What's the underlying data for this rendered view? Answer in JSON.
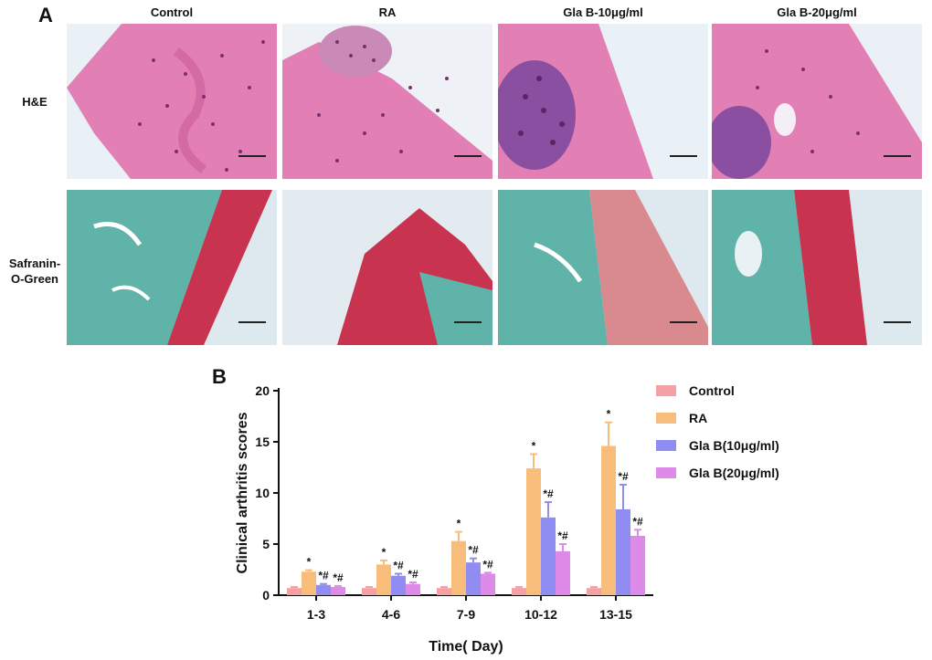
{
  "panel_a": {
    "letter": "A",
    "columns": [
      "Control",
      "RA",
      "Gla B-10μg/ml",
      "Gla B-20μg/ml"
    ],
    "rows": [
      {
        "label_lines": [
          "H&E"
        ]
      },
      {
        "label_lines": [
          "Safranin-",
          "O-Green"
        ]
      }
    ],
    "colors": {
      "he_background": "#e9f0f6",
      "he_tissue": "#e27fb4",
      "he_nuclei": "#7b2f73",
      "safranin_green": "#5fb3a8",
      "safranin_red": "#c8334f",
      "safranin_background": "#dde9ef"
    }
  },
  "panel_b": {
    "letter": "B",
    "legend": [
      "Control",
      "RA",
      "Gla B(10μg/ml)",
      "Gla B(20μg/ml)"
    ],
    "colors": [
      "#f4a0a4",
      "#f8bd7a",
      "#8f8cf2",
      "#de8ae8"
    ],
    "chart_data": {
      "type": "bar",
      "xlabel": "Time( Day)",
      "ylabel": "Clinical arthritis scores",
      "ylim": [
        0,
        20
      ],
      "yticks": [
        0,
        5,
        10,
        15,
        20
      ],
      "categories": [
        "1-3",
        "4-6",
        "7-9",
        "10-12",
        "13-15"
      ],
      "series": [
        {
          "name": "Control",
          "values": [
            0.7,
            0.7,
            0.7,
            0.7,
            0.7
          ],
          "errors": [
            0.1,
            0.1,
            0.1,
            0.1,
            0.1
          ],
          "sig": [
            "",
            "",
            "",
            "",
            ""
          ]
        },
        {
          "name": "RA",
          "values": [
            2.3,
            3.0,
            5.3,
            12.4,
            14.6
          ],
          "errors": [
            0.15,
            0.4,
            0.9,
            1.4,
            2.3
          ],
          "sig": [
            "*",
            "*",
            "*",
            "*",
            "*"
          ]
        },
        {
          "name": "Gla B(10μg/ml)",
          "values": [
            1.0,
            1.9,
            3.2,
            7.6,
            8.4
          ],
          "errors": [
            0.1,
            0.2,
            0.4,
            1.5,
            2.4
          ],
          "sig": [
            "*#",
            "*#",
            "*#",
            "*#",
            "*#"
          ]
        },
        {
          "name": "Gla B(20μg/ml)",
          "values": [
            0.8,
            1.1,
            2.1,
            4.3,
            5.8
          ],
          "errors": [
            0.1,
            0.15,
            0.1,
            0.7,
            0.6
          ],
          "sig": [
            "*#",
            "*#",
            "*#",
            "*#",
            "*#"
          ]
        }
      ],
      "grid": false,
      "legend_position": "right"
    }
  }
}
